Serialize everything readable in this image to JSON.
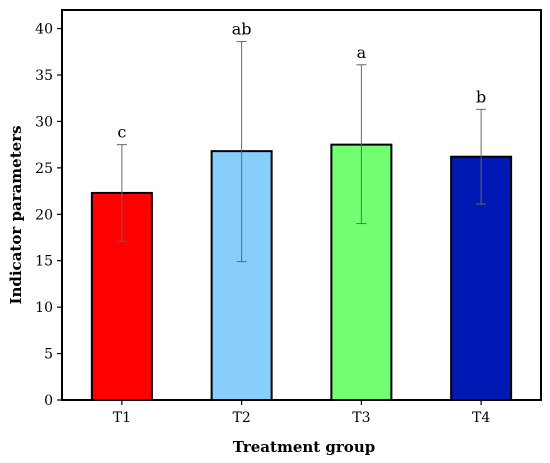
{
  "chart_data": {
    "type": "bar",
    "title": "",
    "xlabel": "Treatment group",
    "ylabel": "Indicator parameters",
    "ylim": [
      0,
      42
    ],
    "yticks": [
      0,
      5,
      10,
      15,
      20,
      25,
      30,
      35,
      40
    ],
    "grid": false,
    "categories": [
      "T1",
      "T2",
      "T3",
      "T4"
    ],
    "values": [
      22.3,
      26.8,
      27.5,
      26.2
    ],
    "error_low": [
      17.1,
      14.9,
      19.0,
      21.1
    ],
    "error_high": [
      27.5,
      38.6,
      36.1,
      31.3
    ],
    "significance_labels": [
      "c",
      "ab",
      "a",
      "b"
    ],
    "colors": [
      "#ff0000",
      "#87cefa",
      "#72ff72",
      "#0018b4"
    ]
  }
}
